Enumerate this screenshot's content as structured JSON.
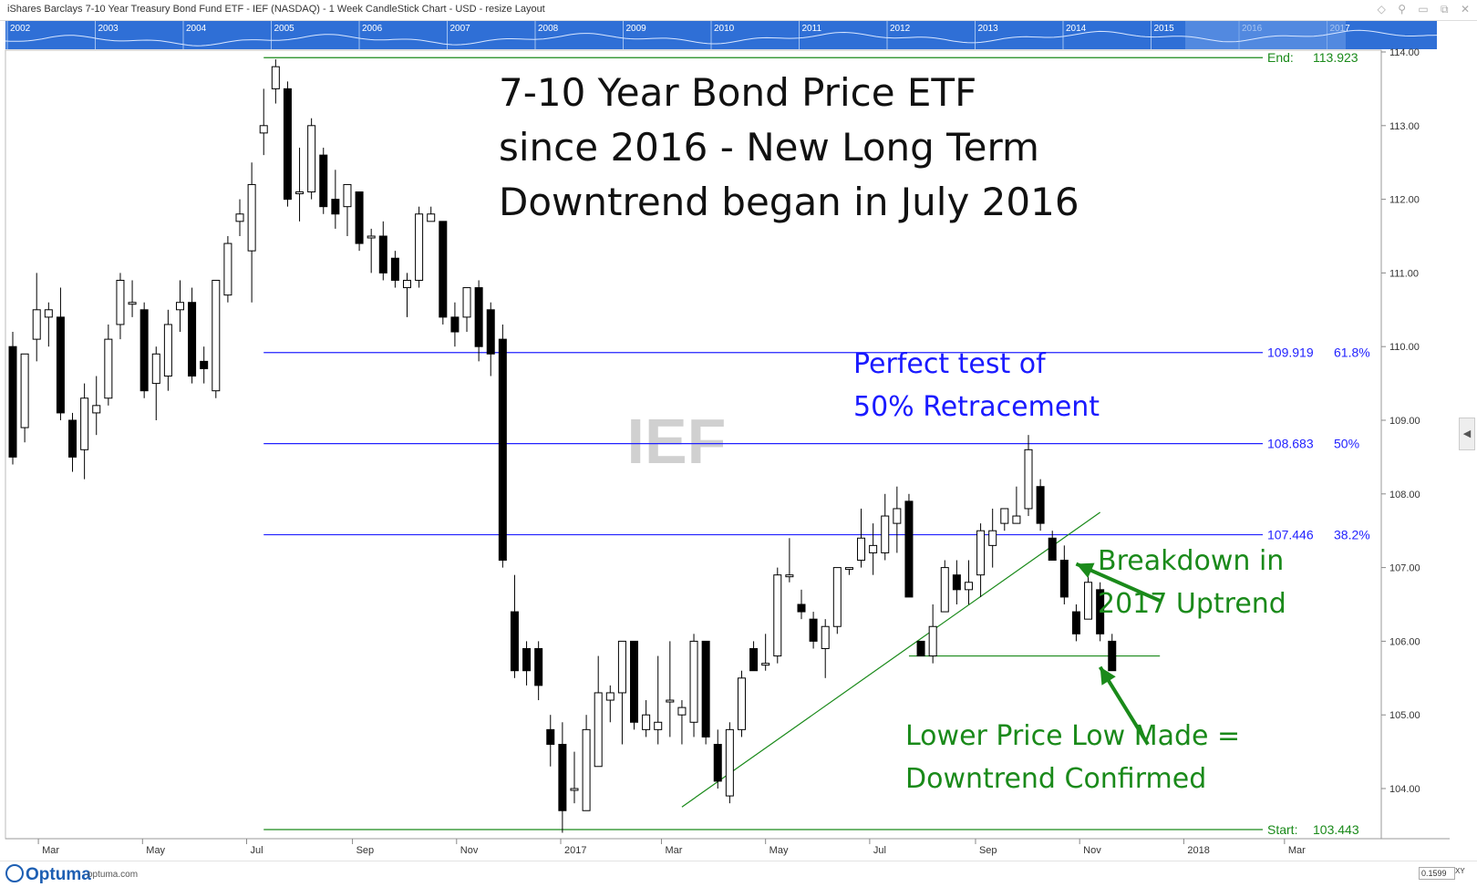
{
  "window": {
    "title": "iShares Barclays 7-10 Year Treasury Bond Fund ETF - IEF (NASDAQ) - 1 Week CandleStick Chart - USD - resize Layout"
  },
  "overview": {
    "years": [
      "2002",
      "2003",
      "2004",
      "2005",
      "2006",
      "2007",
      "2008",
      "2009",
      "2010",
      "2011",
      "2012",
      "2013",
      "2014",
      "2015",
      "2016",
      "2017"
    ]
  },
  "footer": {
    "brand": "Optuma",
    "url": "optuma.com",
    "zoom_value": "0.1599",
    "xy_label": "XY"
  },
  "colors": {
    "fib_line": "#2222ff",
    "trend_line": "#1a8a1a",
    "annotation_green": "#1a8a1a",
    "annotation_blue": "#1a1aff",
    "watermark": "#d0d0d0",
    "overview_bg": "#2f6fd6"
  },
  "chart_data": {
    "type": "candlestick",
    "title_lines": [
      "7-10 Year Bond Price ETF",
      "since 2016 - New Long Term",
      "Downtrend began in July 2016"
    ],
    "watermark": "IEF",
    "ylim": [
      103.35,
      114.1
    ],
    "yticks": [
      104,
      105,
      106,
      107,
      108,
      109,
      110,
      111,
      112,
      113,
      114
    ],
    "ytick_labels": [
      "104.00",
      "105.00",
      "106.00",
      "107.00",
      "108.00",
      "109.00",
      "110.00",
      "111.00",
      "112.00",
      "113.00",
      "114.00"
    ],
    "xlim": [
      "2016-02-15",
      "2018-04-08"
    ],
    "x_labels": [
      {
        "date": "2016-03-01",
        "label": "Mar"
      },
      {
        "date": "2016-05-01",
        "label": "May"
      },
      {
        "date": "2016-07-01",
        "label": "Jul"
      },
      {
        "date": "2016-09-01",
        "label": "Sep"
      },
      {
        "date": "2016-11-01",
        "label": "Nov"
      },
      {
        "date": "2017-01-01",
        "label": "2017"
      },
      {
        "date": "2017-03-01",
        "label": "Mar"
      },
      {
        "date": "2017-05-01",
        "label": "May"
      },
      {
        "date": "2017-07-01",
        "label": "Jul"
      },
      {
        "date": "2017-09-01",
        "label": "Sep"
      },
      {
        "date": "2017-11-01",
        "label": "Nov"
      },
      {
        "date": "2018-01-01",
        "label": "2018"
      },
      {
        "date": "2018-03-01",
        "label": "Mar"
      }
    ],
    "candles": [
      {
        "date": "2016-02-15",
        "o": 110.0,
        "h": 110.2,
        "l": 108.4,
        "c": 108.5
      },
      {
        "date": "2016-02-22",
        "o": 108.9,
        "h": 109.9,
        "l": 108.7,
        "c": 109.9
      },
      {
        "date": "2016-02-29",
        "o": 110.1,
        "h": 111.0,
        "l": 109.8,
        "c": 110.5
      },
      {
        "date": "2016-03-07",
        "o": 110.4,
        "h": 110.6,
        "l": 110.0,
        "c": 110.5
      },
      {
        "date": "2016-03-14",
        "o": 110.4,
        "h": 110.8,
        "l": 109.0,
        "c": 109.1
      },
      {
        "date": "2016-03-21",
        "o": 109.0,
        "h": 109.1,
        "l": 108.3,
        "c": 108.5
      },
      {
        "date": "2016-03-28",
        "o": 108.6,
        "h": 109.5,
        "l": 108.2,
        "c": 109.3
      },
      {
        "date": "2016-04-04",
        "o": 109.1,
        "h": 109.6,
        "l": 108.8,
        "c": 109.2
      },
      {
        "date": "2016-04-11",
        "o": 109.3,
        "h": 110.3,
        "l": 109.2,
        "c": 110.1
      },
      {
        "date": "2016-04-18",
        "o": 110.3,
        "h": 111.0,
        "l": 110.1,
        "c": 110.9
      },
      {
        "date": "2016-04-25",
        "o": 110.6,
        "h": 110.9,
        "l": 110.4,
        "c": 110.6
      },
      {
        "date": "2016-05-02",
        "o": 110.5,
        "h": 110.6,
        "l": 109.3,
        "c": 109.4
      },
      {
        "date": "2016-05-09",
        "o": 109.5,
        "h": 110.0,
        "l": 109.0,
        "c": 109.9
      },
      {
        "date": "2016-05-16",
        "o": 109.6,
        "h": 110.5,
        "l": 109.4,
        "c": 110.3
      },
      {
        "date": "2016-05-23",
        "o": 110.5,
        "h": 110.9,
        "l": 110.2,
        "c": 110.6
      },
      {
        "date": "2016-05-30",
        "o": 110.6,
        "h": 110.8,
        "l": 109.5,
        "c": 109.6
      },
      {
        "date": "2016-06-06",
        "o": 109.8,
        "h": 110.0,
        "l": 109.5,
        "c": 109.7
      },
      {
        "date": "2016-06-13",
        "o": 109.4,
        "h": 110.9,
        "l": 109.3,
        "c": 110.9
      },
      {
        "date": "2016-06-20",
        "o": 110.7,
        "h": 111.5,
        "l": 110.6,
        "c": 111.4
      },
      {
        "date": "2016-06-27",
        "o": 111.7,
        "h": 112.0,
        "l": 111.5,
        "c": 111.8
      },
      {
        "date": "2016-07-04",
        "o": 111.3,
        "h": 112.5,
        "l": 110.6,
        "c": 112.2
      },
      {
        "date": "2016-07-11",
        "o": 112.9,
        "h": 113.5,
        "l": 112.6,
        "c": 113.0
      },
      {
        "date": "2016-07-18",
        "o": 113.5,
        "h": 113.9,
        "l": 113.3,
        "c": 113.8
      },
      {
        "date": "2016-07-25",
        "o": 113.5,
        "h": 113.6,
        "l": 111.9,
        "c": 112.0
      },
      {
        "date": "2016-08-01",
        "o": 112.1,
        "h": 112.7,
        "l": 111.7,
        "c": 112.1
      },
      {
        "date": "2016-08-08",
        "o": 112.1,
        "h": 113.1,
        "l": 112.0,
        "c": 113.0
      },
      {
        "date": "2016-08-15",
        "o": 112.6,
        "h": 112.7,
        "l": 111.8,
        "c": 111.9
      },
      {
        "date": "2016-08-22",
        "o": 112.0,
        "h": 112.4,
        "l": 111.6,
        "c": 111.8
      },
      {
        "date": "2016-08-29",
        "o": 111.9,
        "h": 112.2,
        "l": 111.5,
        "c": 112.2
      },
      {
        "date": "2016-09-05",
        "o": 112.1,
        "h": 112.1,
        "l": 111.3,
        "c": 111.4
      },
      {
        "date": "2016-09-12",
        "o": 111.5,
        "h": 111.6,
        "l": 111.0,
        "c": 111.5
      },
      {
        "date": "2016-09-19",
        "o": 111.5,
        "h": 111.7,
        "l": 110.9,
        "c": 111.0
      },
      {
        "date": "2016-09-26",
        "o": 111.2,
        "h": 111.3,
        "l": 110.8,
        "c": 110.9
      },
      {
        "date": "2016-10-03",
        "o": 110.8,
        "h": 111.0,
        "l": 110.4,
        "c": 110.9
      },
      {
        "date": "2016-10-10",
        "o": 110.9,
        "h": 111.9,
        "l": 110.8,
        "c": 111.8
      },
      {
        "date": "2016-10-17",
        "o": 111.7,
        "h": 111.9,
        "l": 111.7,
        "c": 111.8
      },
      {
        "date": "2016-10-24",
        "o": 111.7,
        "h": 111.7,
        "l": 110.3,
        "c": 110.4
      },
      {
        "date": "2016-10-31",
        "o": 110.4,
        "h": 110.6,
        "l": 110.0,
        "c": 110.2
      },
      {
        "date": "2016-11-07",
        "o": 110.4,
        "h": 110.8,
        "l": 110.2,
        "c": 110.8
      },
      {
        "date": "2016-11-14",
        "o": 110.8,
        "h": 110.9,
        "l": 109.8,
        "c": 110.0
      },
      {
        "date": "2016-11-21",
        "o": 110.5,
        "h": 110.6,
        "l": 109.6,
        "c": 109.9
      },
      {
        "date": "2016-11-28",
        "o": 110.1,
        "h": 110.3,
        "l": 107.0,
        "c": 107.1
      },
      {
        "date": "2016-12-05",
        "o": 106.4,
        "h": 106.9,
        "l": 105.5,
        "c": 105.6
      },
      {
        "date": "2016-12-12",
        "o": 105.9,
        "h": 106.0,
        "l": 105.4,
        "c": 105.6
      },
      {
        "date": "2016-12-19",
        "o": 105.9,
        "h": 106.0,
        "l": 105.2,
        "c": 105.4
      },
      {
        "date": "2016-12-26",
        "o": 104.8,
        "h": 105.0,
        "l": 104.3,
        "c": 104.6
      },
      {
        "date": "2017-01-02",
        "o": 104.6,
        "h": 104.9,
        "l": 103.4,
        "c": 103.7
      },
      {
        "date": "2017-01-09",
        "o": 104.0,
        "h": 104.5,
        "l": 103.8,
        "c": 104.0
      },
      {
        "date": "2017-01-16",
        "o": 103.7,
        "h": 105.0,
        "l": 103.7,
        "c": 104.8
      },
      {
        "date": "2017-01-23",
        "o": 104.3,
        "h": 105.8,
        "l": 104.3,
        "c": 105.3
      },
      {
        "date": "2017-01-30",
        "o": 105.2,
        "h": 105.4,
        "l": 104.9,
        "c": 105.3
      },
      {
        "date": "2017-02-06",
        "o": 105.3,
        "h": 106.0,
        "l": 104.6,
        "c": 106.0
      },
      {
        "date": "2017-02-13",
        "o": 106.0,
        "h": 106.0,
        "l": 104.8,
        "c": 104.9
      },
      {
        "date": "2017-02-20",
        "o": 104.8,
        "h": 105.2,
        "l": 104.7,
        "c": 105.0
      },
      {
        "date": "2017-02-27",
        "o": 104.8,
        "h": 105.8,
        "l": 104.6,
        "c": 104.9
      },
      {
        "date": "2017-03-06",
        "o": 105.2,
        "h": 106.0,
        "l": 104.7,
        "c": 105.2
      },
      {
        "date": "2017-03-13",
        "o": 105.0,
        "h": 105.2,
        "l": 104.6,
        "c": 105.1
      },
      {
        "date": "2017-03-20",
        "o": 104.9,
        "h": 106.1,
        "l": 104.7,
        "c": 106.0
      },
      {
        "date": "2017-03-27",
        "o": 106.0,
        "h": 106.0,
        "l": 104.6,
        "c": 104.7
      },
      {
        "date": "2017-04-03",
        "o": 104.6,
        "h": 104.8,
        "l": 104.0,
        "c": 104.1
      },
      {
        "date": "2017-04-10",
        "o": 103.9,
        "h": 104.9,
        "l": 103.8,
        "c": 104.8
      },
      {
        "date": "2017-04-17",
        "o": 104.8,
        "h": 105.6,
        "l": 104.7,
        "c": 105.5
      },
      {
        "date": "2017-04-24",
        "o": 105.9,
        "h": 106.0,
        "l": 105.6,
        "c": 105.6
      },
      {
        "date": "2017-05-01",
        "o": 105.7,
        "h": 106.1,
        "l": 105.6,
        "c": 105.7
      },
      {
        "date": "2017-05-08",
        "o": 105.8,
        "h": 107.0,
        "l": 105.7,
        "c": 106.9
      },
      {
        "date": "2017-05-15",
        "o": 106.9,
        "h": 107.4,
        "l": 106.8,
        "c": 106.9
      },
      {
        "date": "2017-05-22",
        "o": 106.5,
        "h": 106.7,
        "l": 106.3,
        "c": 106.4
      },
      {
        "date": "2017-05-29",
        "o": 106.3,
        "h": 106.4,
        "l": 105.9,
        "c": 106.0
      },
      {
        "date": "2017-06-05",
        "o": 105.9,
        "h": 106.3,
        "l": 105.5,
        "c": 106.2
      },
      {
        "date": "2017-06-12",
        "o": 106.2,
        "h": 107.0,
        "l": 106.1,
        "c": 107.0
      },
      {
        "date": "2017-06-19",
        "o": 107.0,
        "h": 107.0,
        "l": 106.9,
        "c": 107.0
      },
      {
        "date": "2017-06-26",
        "o": 107.1,
        "h": 107.8,
        "l": 107.0,
        "c": 107.4
      },
      {
        "date": "2017-07-03",
        "o": 107.2,
        "h": 107.6,
        "l": 106.9,
        "c": 107.3
      },
      {
        "date": "2017-07-10",
        "o": 107.2,
        "h": 108.0,
        "l": 107.1,
        "c": 107.7
      },
      {
        "date": "2017-07-17",
        "o": 107.6,
        "h": 108.1,
        "l": 107.2,
        "c": 107.8
      },
      {
        "date": "2017-07-24",
        "o": 107.9,
        "h": 108.0,
        "l": 106.6,
        "c": 106.6
      },
      {
        "date": "2017-07-31",
        "o": 106.0,
        "h": 106.0,
        "l": 105.8,
        "c": 105.8
      },
      {
        "date": "2017-08-07",
        "o": 105.8,
        "h": 106.5,
        "l": 105.7,
        "c": 106.2
      },
      {
        "date": "2017-08-14",
        "o": 106.4,
        "h": 107.1,
        "l": 106.4,
        "c": 107.0
      },
      {
        "date": "2017-08-21",
        "o": 106.9,
        "h": 107.1,
        "l": 106.5,
        "c": 106.7
      },
      {
        "date": "2017-08-28",
        "o": 106.7,
        "h": 107.1,
        "l": 106.5,
        "c": 106.8
      },
      {
        "date": "2017-09-04",
        "o": 106.9,
        "h": 107.6,
        "l": 106.6,
        "c": 107.5
      },
      {
        "date": "2017-09-11",
        "o": 107.3,
        "h": 107.8,
        "l": 107.0,
        "c": 107.5
      },
      {
        "date": "2017-09-18",
        "o": 107.6,
        "h": 107.8,
        "l": 107.5,
        "c": 107.8
      },
      {
        "date": "2017-09-25",
        "o": 107.6,
        "h": 108.1,
        "l": 107.6,
        "c": 107.7
      },
      {
        "date": "2017-10-02",
        "o": 107.8,
        "h": 108.8,
        "l": 107.7,
        "c": 108.6
      },
      {
        "date": "2017-10-09",
        "o": 108.1,
        "h": 108.2,
        "l": 107.5,
        "c": 107.6
      },
      {
        "date": "2017-10-16",
        "o": 107.4,
        "h": 107.5,
        "l": 107.1,
        "c": 107.1
      },
      {
        "date": "2017-10-23",
        "o": 107.1,
        "h": 107.3,
        "l": 106.5,
        "c": 106.6
      },
      {
        "date": "2017-10-30",
        "o": 106.4,
        "h": 106.5,
        "l": 106.0,
        "c": 106.1
      },
      {
        "date": "2017-11-06",
        "o": 106.3,
        "h": 107.0,
        "l": 106.3,
        "c": 106.8
      },
      {
        "date": "2017-11-13",
        "o": 106.7,
        "h": 106.8,
        "l": 106.0,
        "c": 106.1
      },
      {
        "date": "2017-11-20",
        "o": 106.0,
        "h": 106.1,
        "l": 105.6,
        "c": 105.6
      }
    ],
    "fib_levels": [
      {
        "value": 109.919,
        "label": "109.919",
        "pct": "61.8%"
      },
      {
        "value": 108.683,
        "label": "108.683",
        "pct": "50%"
      },
      {
        "value": 107.446,
        "label": "107.446",
        "pct": "38.2%"
      }
    ],
    "fib_start_date": "2016-07-11",
    "start_level": {
      "value": 103.443,
      "prefix": "Start:",
      "label": "103.443"
    },
    "end_level": {
      "value": 113.923,
      "prefix": "End:",
      "label": "113.923"
    },
    "uptrend_line": {
      "x1": "2017-03-13",
      "y1": 103.75,
      "x2": "2017-11-13",
      "y2": 107.75
    },
    "support_line": {
      "x1": "2017-07-24",
      "x2": "2017-12-18",
      "y": 105.8
    },
    "annotations": {
      "blue_lines": [
        "Perfect test of",
        "50% Retracement"
      ],
      "breakdown_lines": [
        "Breakdown in",
        "2017 Uptrend"
      ],
      "confirm_lines": [
        "Lower Price Low Made =",
        "Downtrend Confirmed"
      ]
    },
    "arrows": [
      {
        "x1": "2017-12-18",
        "y1": 106.55,
        "x2": "2017-10-30",
        "y2": 107.05
      },
      {
        "x1": "2017-12-11",
        "y1": 104.6,
        "x2": "2017-11-13",
        "y2": 105.65
      }
    ]
  }
}
